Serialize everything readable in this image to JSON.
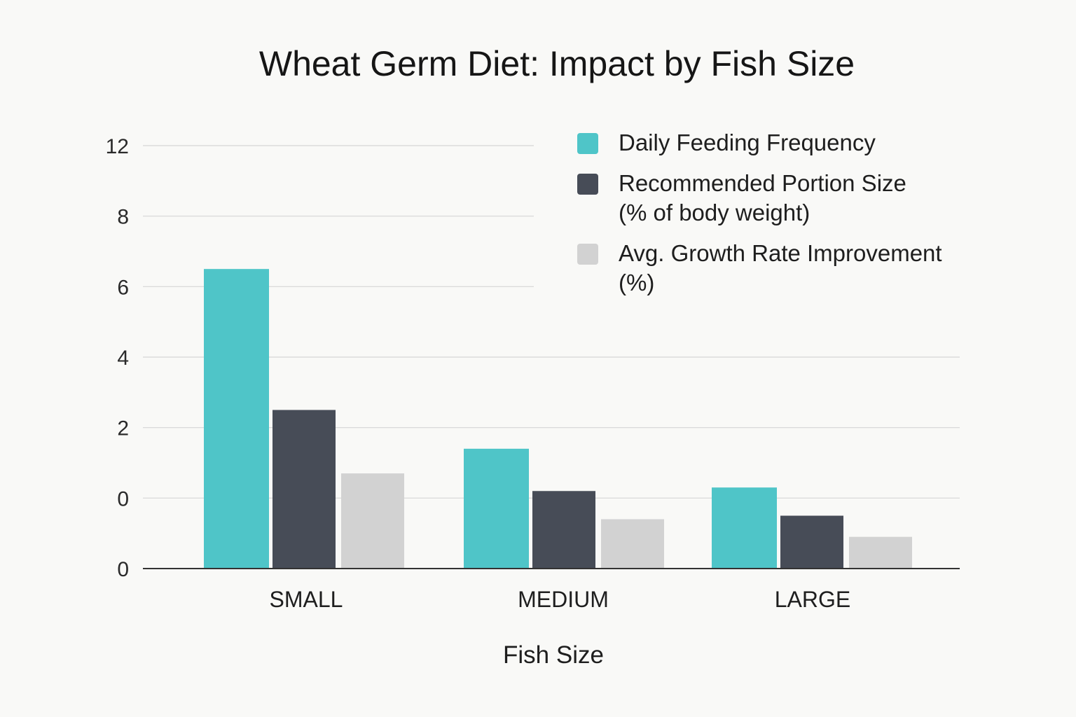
{
  "chart_data": {
    "type": "bar",
    "title": "Wheat Germ Diet: Impact by Fish Size",
    "xlabel": "Fish Size",
    "ylabel": "",
    "categories": [
      "SMALL",
      "MEDIUM",
      "LARGE"
    ],
    "y_tick_labels": [
      "0",
      "0",
      "2",
      "4",
      "6",
      "8",
      "12"
    ],
    "ylim": [
      0,
      12
    ],
    "grid": true,
    "legend_position": "top-right",
    "series": [
      {
        "name": "Daily Feeding Frequency",
        "label_lines": [
          "Daily Feeding Frequency"
        ],
        "color": "#4fc5c8",
        "values": [
          8.5,
          3.4,
          2.3
        ]
      },
      {
        "name": "Recommended Portion Size (% of body weight)",
        "label_lines": [
          "Recommended Portion Size",
          "(% of body weight)"
        ],
        "color": "#474c57",
        "values": [
          4.5,
          2.2,
          1.5
        ]
      },
      {
        "name": "Avg. Growth Rate Improvement (%)",
        "label_lines": [
          "Avg. Growth Rate Improvement",
          "(%)"
        ],
        "color": "#d2d2d2",
        "values": [
          2.7,
          1.4,
          0.9
        ]
      }
    ]
  }
}
